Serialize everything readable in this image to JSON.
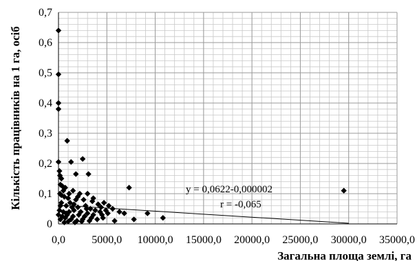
{
  "chart_data": {
    "type": "scatter",
    "xlabel": "Загальна площа землі, га",
    "ylabel": "Кількість працівників на 1 га, осіб",
    "xlim": [
      0,
      35000
    ],
    "ylim": [
      0,
      0.7
    ],
    "x_ticks": [
      0,
      5000,
      10000,
      15000,
      20000,
      25000,
      30000,
      35000
    ],
    "x_tick_labels": [
      "0,0",
      "5000,0",
      "10000,0",
      "15000,0",
      "20000,0",
      "25000,0",
      "30000,0",
      "35000,0"
    ],
    "y_ticks": [
      0,
      0.1,
      0.2,
      0.3,
      0.4,
      0.5,
      0.6,
      0.7
    ],
    "y_tick_labels": [
      "0",
      "0,1",
      "0,2",
      "0,3",
      "0,4",
      "0,5",
      "0,6",
      "0,7"
    ],
    "grid": true,
    "legend": "none",
    "marker": "diamond",
    "marker_color": "#000000",
    "annotations": [
      "y = 0,0622-0,000002",
      "r = -0,065"
    ],
    "trendline": {
      "intercept": 0.0622,
      "slope": -2e-06,
      "x_range": [
        0,
        30000
      ]
    },
    "series": [
      {
        "points": [
          [
            0,
            0.64
          ],
          [
            0,
            0.495
          ],
          [
            0,
            0.4
          ],
          [
            0,
            0.38
          ],
          [
            0,
            0.205
          ],
          [
            100,
            0.175
          ],
          [
            150,
            0.16
          ],
          [
            300,
            0.15
          ],
          [
            200,
            0.13
          ],
          [
            400,
            0.125
          ],
          [
            900,
            0.275
          ],
          [
            1300,
            0.205
          ],
          [
            2500,
            0.215
          ],
          [
            1800,
            0.165
          ],
          [
            3100,
            0.165
          ],
          [
            700,
            0.12
          ],
          [
            1500,
            0.11
          ],
          [
            2200,
            0.1
          ],
          [
            3000,
            0.1
          ],
          [
            600,
            0.09
          ],
          [
            1000,
            0.085
          ],
          [
            1800,
            0.08
          ],
          [
            2600,
            0.08
          ],
          [
            300,
            0.07
          ],
          [
            1200,
            0.07
          ],
          [
            3500,
            0.075
          ],
          [
            4100,
            0.065
          ],
          [
            4700,
            0.07
          ],
          [
            5200,
            0.06
          ],
          [
            5600,
            0.05
          ],
          [
            200,
            0.06
          ],
          [
            800,
            0.06
          ],
          [
            1400,
            0.055
          ],
          [
            2000,
            0.055
          ],
          [
            2800,
            0.06
          ],
          [
            3300,
            0.05
          ],
          [
            3800,
            0.045
          ],
          [
            4300,
            0.04
          ],
          [
            4900,
            0.045
          ],
          [
            6300,
            0.04
          ],
          [
            6800,
            0.035
          ],
          [
            100,
            0.045
          ],
          [
            500,
            0.04
          ],
          [
            1100,
            0.04
          ],
          [
            1600,
            0.045
          ],
          [
            2300,
            0.04
          ],
          [
            3000,
            0.035
          ],
          [
            3600,
            0.03
          ],
          [
            4500,
            0.03
          ],
          [
            5100,
            0.035
          ],
          [
            0,
            0.03
          ],
          [
            400,
            0.025
          ],
          [
            900,
            0.03
          ],
          [
            1500,
            0.025
          ],
          [
            2100,
            0.03
          ],
          [
            2700,
            0.025
          ],
          [
            3400,
            0.02
          ],
          [
            4000,
            0.015
          ],
          [
            4600,
            0.02
          ],
          [
            5800,
            0.01
          ],
          [
            200,
            0.015
          ],
          [
            700,
            0.02
          ],
          [
            1300,
            0.015
          ],
          [
            1900,
            0.01
          ],
          [
            2500,
            0.015
          ],
          [
            3200,
            0.01
          ],
          [
            600,
            0.005
          ],
          [
            1000,
            0.008
          ],
          [
            1700,
            0.005
          ],
          [
            2400,
            0.008
          ],
          [
            300,
            0.095
          ],
          [
            1100,
            0.1
          ],
          [
            2000,
            0.09
          ],
          [
            3600,
            0.085
          ],
          [
            500,
            0.11
          ],
          [
            150,
            0.1
          ],
          [
            2900,
            0.05
          ],
          [
            1600,
            0.065
          ],
          [
            4400,
            0.055
          ],
          [
            800,
            0.035
          ],
          [
            7300,
            0.12
          ],
          [
            9200,
            0.035
          ],
          [
            7800,
            0.015
          ],
          [
            10800,
            0.02
          ],
          [
            29500,
            0.11
          ]
        ]
      }
    ]
  }
}
